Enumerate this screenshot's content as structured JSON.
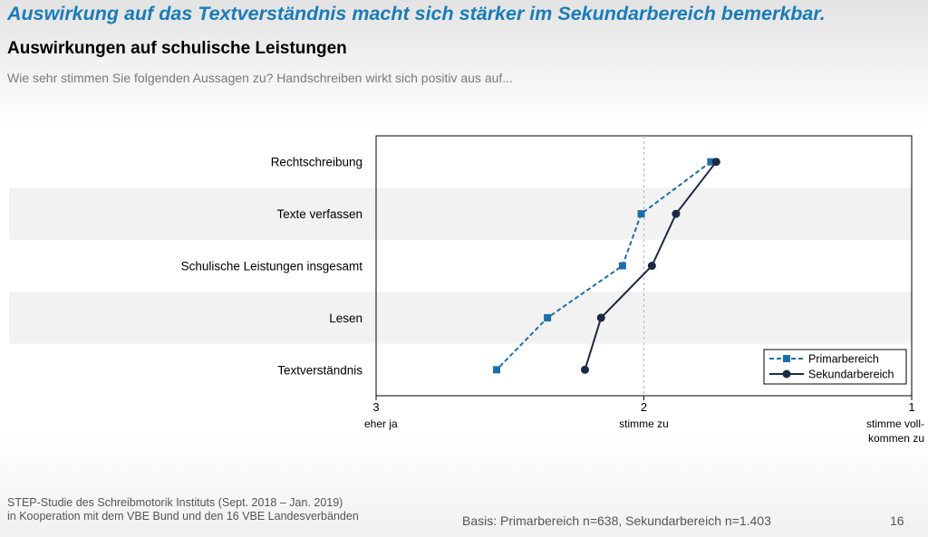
{
  "slide": {
    "headline": "Auswirkung auf das Textverständnis macht sich stärker im Sekundarbereich bemerkbar.",
    "title": "Auswirkungen auf schulische Leistungen",
    "subtitle": "Wie sehr stimmen Sie folgenden Aussagen zu? Handschreiben wirkt sich positiv aus auf...",
    "footer_line1": "STEP-Studie des Schreibmotorik Instituts (Sept. 2018 – Jan. 2019)",
    "footer_line2": "in Kooperation mit dem VBE Bund und den 16 VBE Landesverbänden",
    "basis": "Basis: Primarbereich n=638, Sekundarbereich n=1.403",
    "page_number": "16"
  },
  "chart_data": {
    "type": "line",
    "orientation": "horizontal-dot-plot",
    "categories": [
      "Rechtschreibung",
      "Texte verfassen",
      "Schulische Leistungen insgesamt",
      "Lesen",
      "Textverständnis"
    ],
    "x_axis": {
      "range": [
        3,
        1
      ],
      "ticks": [
        "3",
        "2",
        "1"
      ],
      "tick_values": [
        3,
        2,
        1
      ],
      "tick_labels": [
        "eher ja",
        "stimme zu",
        "stimme voll-\nkommen zu"
      ],
      "reference_line": 2
    },
    "series": [
      {
        "name": "Primarbereich",
        "values": [
          1.75,
          2.01,
          2.08,
          2.36,
          2.55
        ],
        "color": "#1b6fa8",
        "line_style": "dashed",
        "marker": "square"
      },
      {
        "name": "Sekundarbereich",
        "values": [
          1.73,
          1.88,
          1.97,
          2.16,
          2.22
        ],
        "color": "#1b2a44",
        "line_style": "solid",
        "marker": "circle"
      }
    ],
    "legend_position": "bottom-right",
    "row_bands": [
      "#ffffff",
      "#f2f2f2"
    ]
  }
}
